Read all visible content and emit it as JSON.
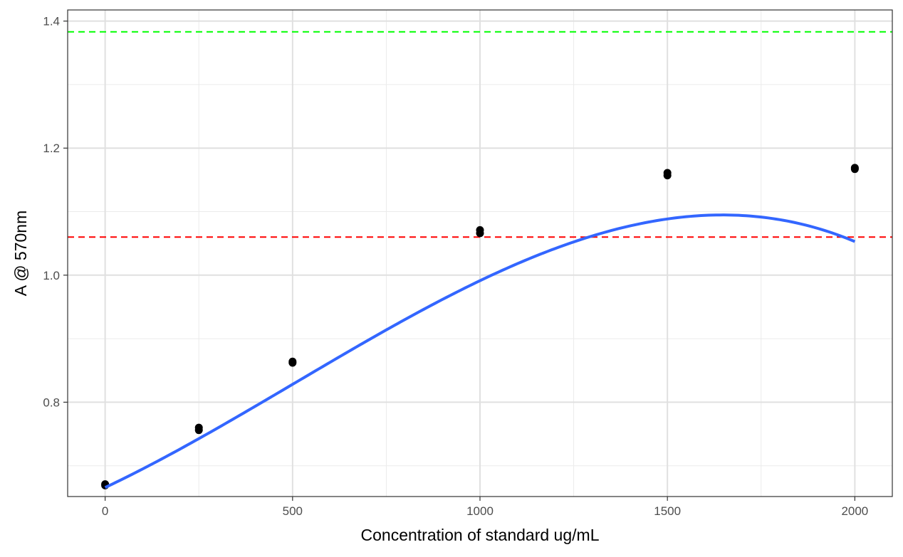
{
  "chart_data": {
    "type": "scatter",
    "title": "",
    "xlabel": "Concentration of standard ug/mL",
    "ylabel": "A @ 570nm",
    "xlim": [
      -100,
      2100
    ],
    "ylim": [
      0.6515,
      1.4175
    ],
    "x_ticks": [
      0,
      500,
      1000,
      1500,
      2000
    ],
    "x_tick_labels": [
      "0",
      "500",
      "1000",
      "1500",
      "2000"
    ],
    "x_minor_ticks": [
      250,
      750,
      1250,
      1750
    ],
    "y_ticks": [
      0.8,
      1.0,
      1.2,
      1.4
    ],
    "y_tick_labels": [
      "0.8",
      "1.0",
      "1.2",
      "1.4"
    ],
    "y_minor_ticks": [
      0.7,
      0.9,
      1.1,
      1.3
    ],
    "grid": true,
    "points": [
      {
        "x": 0,
        "y": 0.671
      },
      {
        "x": 0,
        "y": 0.669
      },
      {
        "x": 250,
        "y": 0.76
      },
      {
        "x": 250,
        "y": 0.756
      },
      {
        "x": 500,
        "y": 0.864
      },
      {
        "x": 500,
        "y": 0.862
      },
      {
        "x": 1000,
        "y": 1.071
      },
      {
        "x": 1000,
        "y": 1.066
      },
      {
        "x": 1500,
        "y": 1.161
      },
      {
        "x": 1500,
        "y": 1.157
      },
      {
        "x": 2000,
        "y": 1.169
      },
      {
        "x": 2000,
        "y": 1.167
      }
    ],
    "fit_curve": {
      "type": "polynomial",
      "degree": 3,
      "coefficients": [
        0.6657,
        0.0002796,
        1.35e-07,
        -8.9e-11
      ],
      "color": "#3366FF",
      "x_range": [
        0,
        2000
      ]
    },
    "reference_lines": [
      {
        "y": 1.383,
        "color": "#00FF00",
        "style": "dashed"
      },
      {
        "y": 1.06,
        "color": "#FF0000",
        "style": "dashed"
      }
    ],
    "point_color": "#000000"
  }
}
